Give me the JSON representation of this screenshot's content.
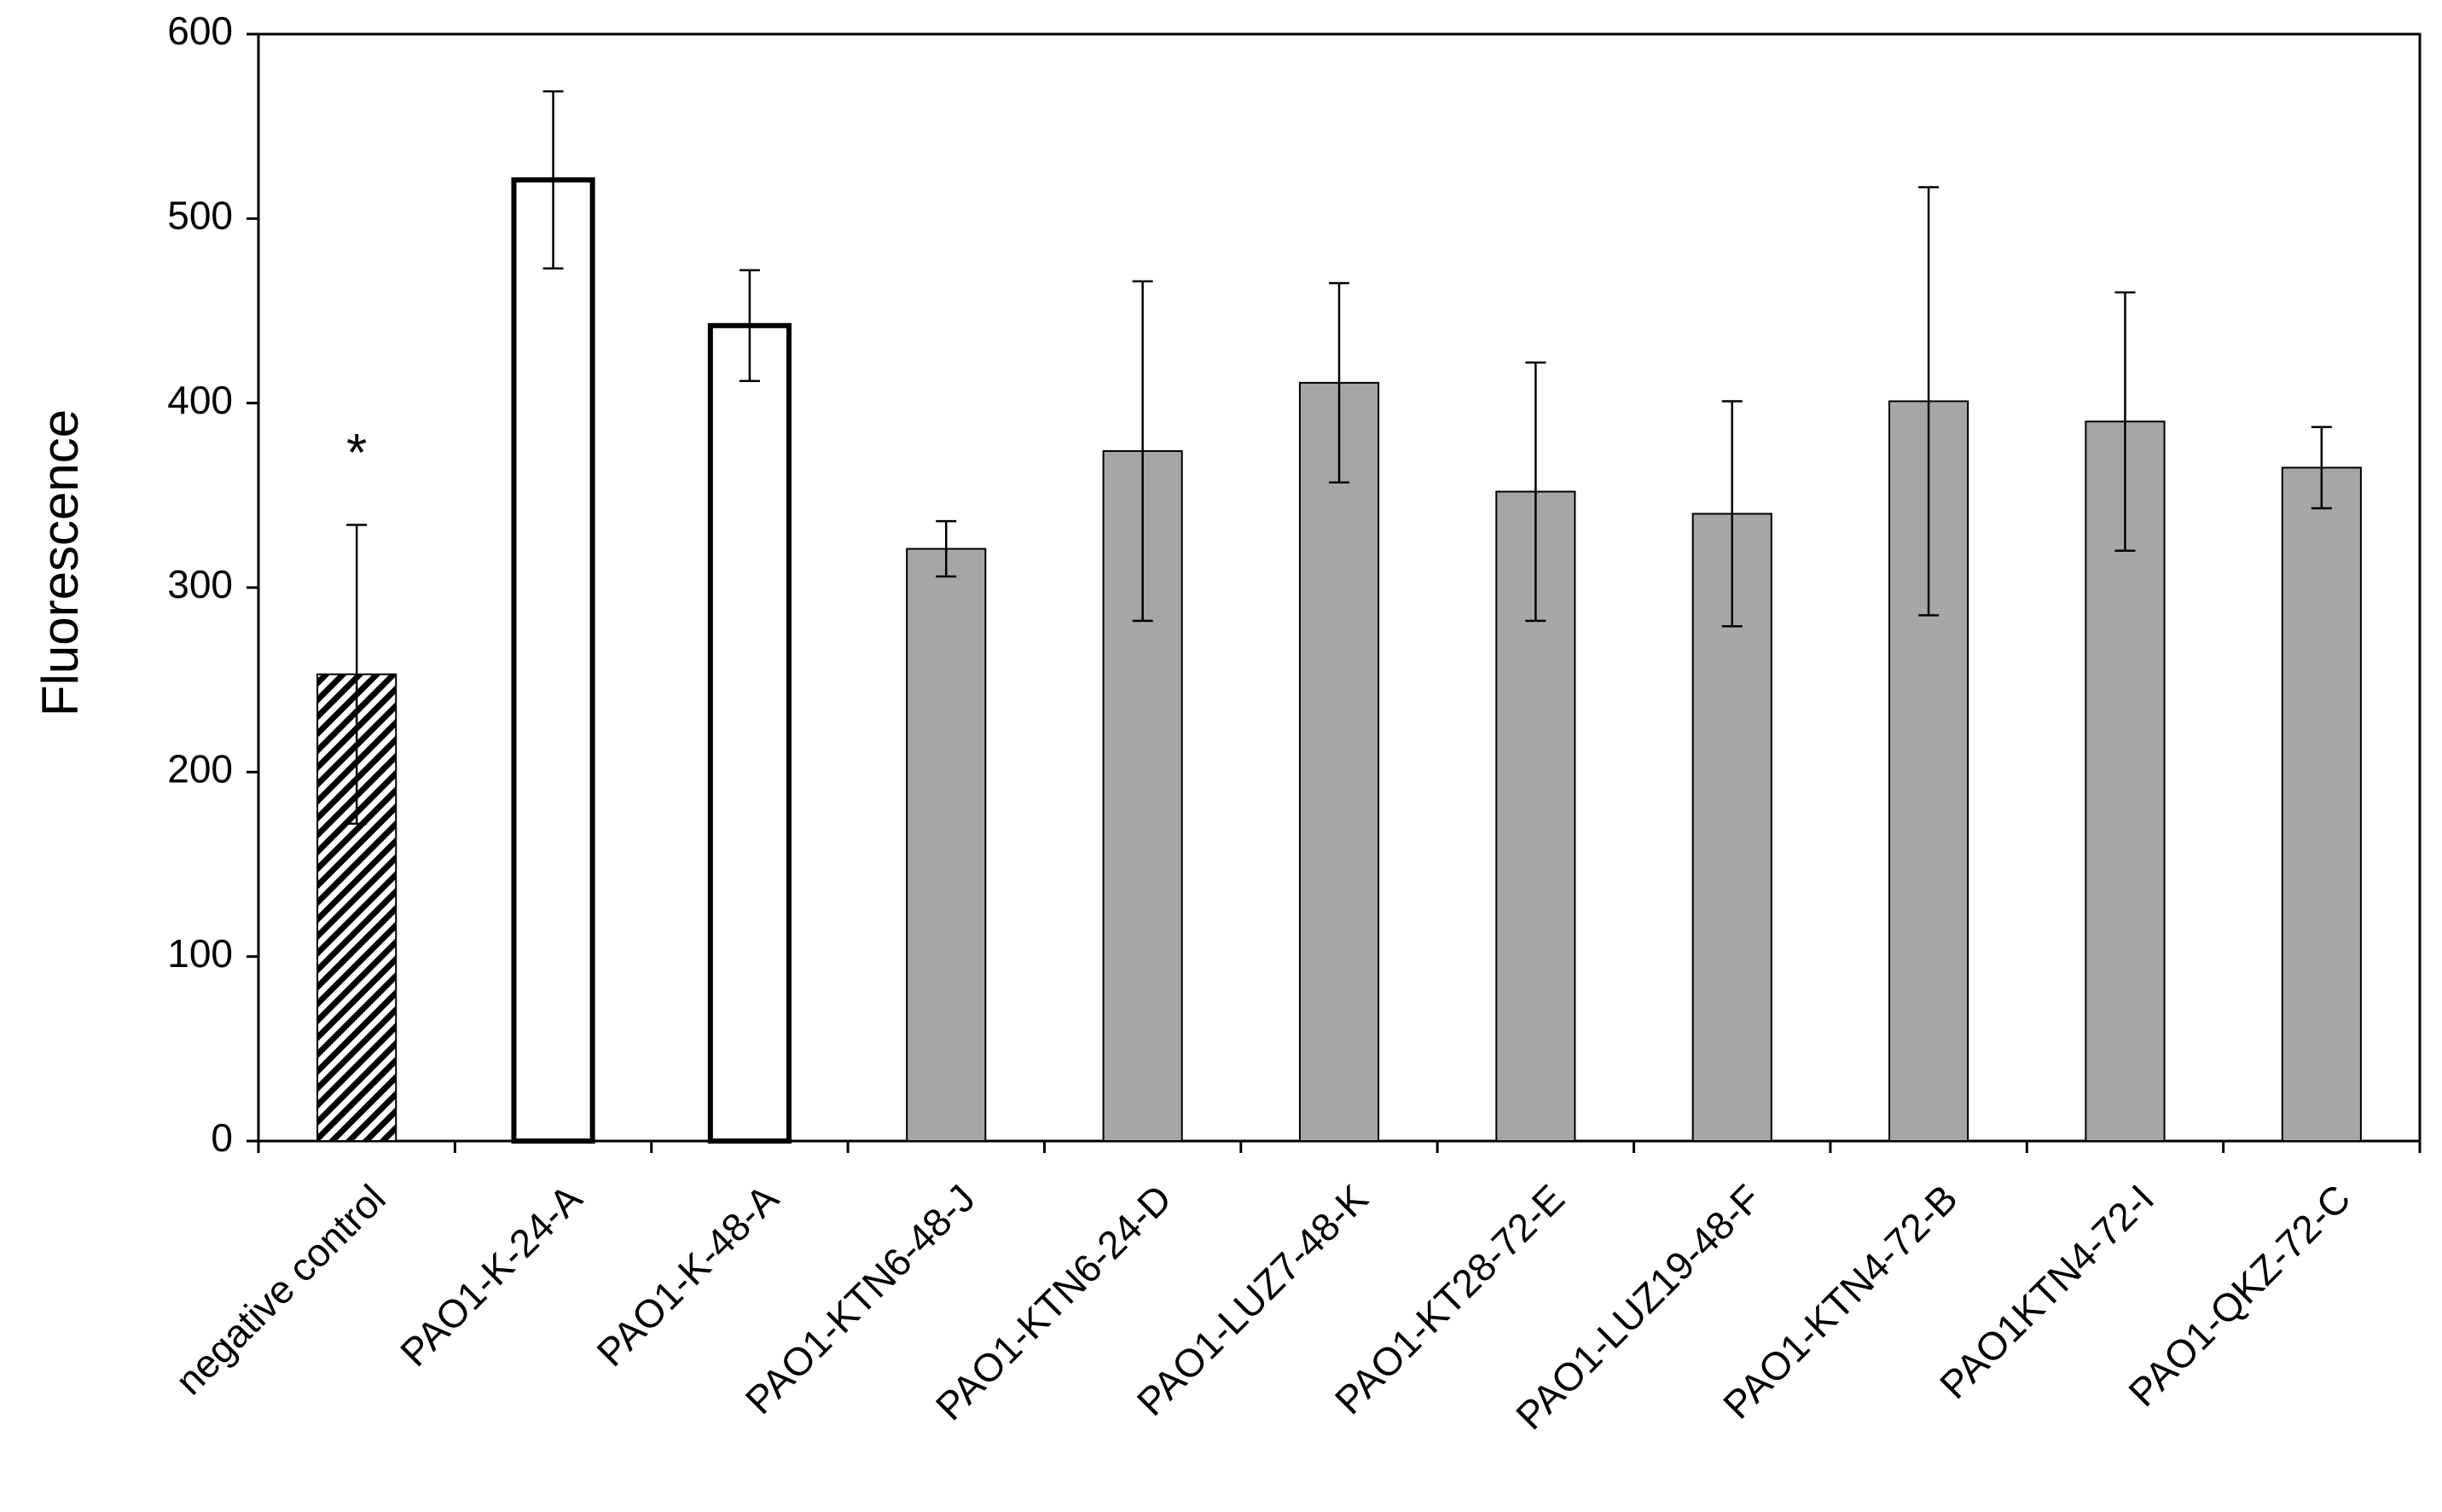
{
  "chart_data": {
    "type": "bar",
    "y_label": "Fluorescence",
    "annotation": "*",
    "categories": [
      "negative control",
      "PAO1-K-24-A",
      "PAO1-K-48-A",
      "PAO1-KTN6-48-J",
      "PAO1-KTN6-24-D",
      "PAO1-LUZ7-48-K",
      "PAO1-KT28-72-E",
      "PAO1-LUZ19-48-F",
      "PAO1-KTN4-72-B",
      "PAO1KTN4-72-I",
      "PAO1-QKZ-72-C"
    ],
    "values": [
      253,
      521,
      442,
      321,
      374,
      411,
      352,
      340,
      401,
      390,
      365
    ],
    "errors": [
      81,
      48,
      30,
      15,
      92,
      54,
      70,
      61,
      116,
      70,
      22
    ],
    "fills": [
      "hatched",
      "#ffffff",
      "#ffffff",
      "#a6a6a6",
      "#a6a6a6",
      "#a6a6a6",
      "#a6a6a6",
      "#a6a6a6",
      "#a6a6a6",
      "#a6a6a6",
      "#a6a6a6"
    ],
    "ylim": [
      0,
      600
    ],
    "yticks": [
      0,
      100,
      200,
      300,
      400,
      500,
      600
    ]
  }
}
